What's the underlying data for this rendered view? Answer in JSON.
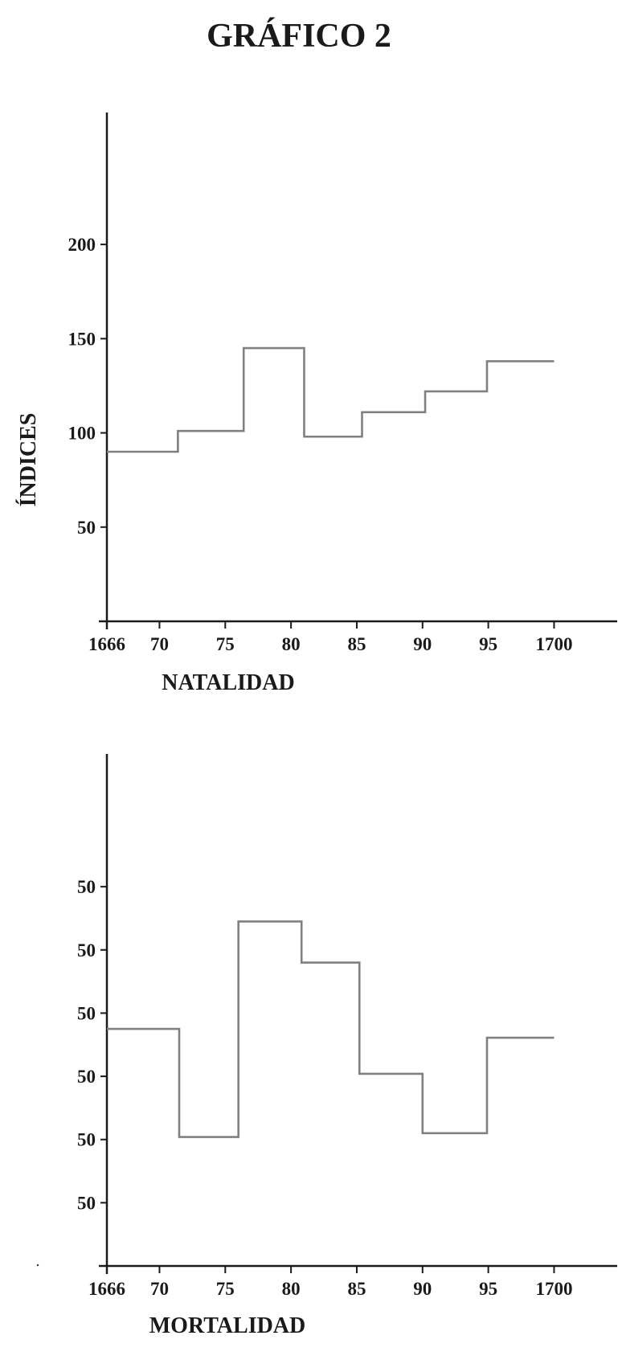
{
  "title": "GRÁFICO 2",
  "chart_data": [
    {
      "type": "line",
      "step": true,
      "title": "NATALIDAD",
      "xlabel": "NATALIDAD",
      "ylabel": "ÍNDICES",
      "x_ticks": [
        1666,
        1670,
        1675,
        1680,
        1685,
        1690,
        1695,
        1700
      ],
      "x_tick_labels": [
        "1666",
        "70",
        "75",
        "80",
        "85",
        "90",
        "95",
        "1700"
      ],
      "y_ticks": [
        50,
        100,
        150,
        200
      ],
      "y_tick_labels": [
        "50",
        "100",
        "150",
        "200"
      ],
      "xlim": [
        1666,
        1704.8
      ],
      "ylim": [
        0,
        270
      ],
      "line_color": "#808080",
      "steps": [
        {
          "start": 1666,
          "end": 1671.4,
          "value": 90
        },
        {
          "start": 1671.4,
          "end": 1676.4,
          "value": 101
        },
        {
          "start": 1676.4,
          "end": 1681.0,
          "value": 145
        },
        {
          "start": 1681.0,
          "end": 1685.4,
          "value": 98
        },
        {
          "start": 1685.4,
          "end": 1690.2,
          "value": 111
        },
        {
          "start": 1690.2,
          "end": 1694.9,
          "value": 122
        },
        {
          "start": 1694.9,
          "end": 1700,
          "value": 138
        }
      ]
    },
    {
      "type": "line",
      "step": true,
      "title": "MORTALIDAD",
      "xlabel": "MORTALIDAD",
      "ylabel": "",
      "x_ticks": [
        1666,
        1670,
        1675,
        1680,
        1685,
        1690,
        1695,
        1700
      ],
      "x_tick_labels": [
        "1666",
        "70",
        "75",
        "80",
        "85",
        "90",
        "95",
        "1700"
      ],
      "y_ticks": [
        1,
        2,
        3,
        4,
        5,
        6
      ],
      "y_tick_labels": [
        "50",
        "50",
        "50",
        "50",
        "50",
        "50"
      ],
      "xlim": [
        1666,
        1704.8
      ],
      "ylim": [
        0,
        8.1
      ],
      "line_color": "#808080",
      "steps": [
        {
          "start": 1666,
          "end": 1671.5,
          "value": 3.75
        },
        {
          "start": 1671.5,
          "end": 1676.0,
          "value": 2.04
        },
        {
          "start": 1676.0,
          "end": 1680.8,
          "value": 5.45
        },
        {
          "start": 1680.8,
          "end": 1685.2,
          "value": 4.8
        },
        {
          "start": 1685.2,
          "end": 1690.0,
          "value": 3.04
        },
        {
          "start": 1690.0,
          "end": 1694.9,
          "value": 2.1
        },
        {
          "start": 1694.9,
          "end": 1700,
          "value": 3.61
        }
      ]
    }
  ]
}
